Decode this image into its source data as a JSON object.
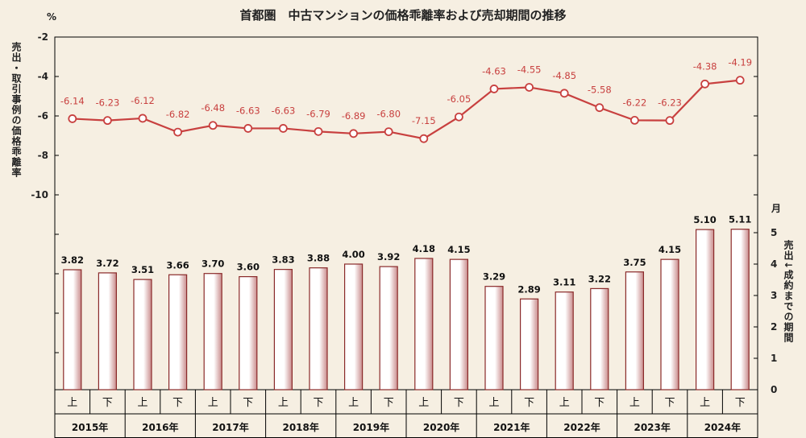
{
  "title": "首都圏　中古マンションの価格乖離率および売却期間の推移",
  "left_unit": "%",
  "right_unit": "月",
  "left_axis_label": "売出・取引事例の価格乖離率",
  "right_axis_label": "売出↓成約までの期間",
  "colors": {
    "line": "#c8403f",
    "bar_edge": "#8a2a2a",
    "bar_fill_light": "#ffffff",
    "bar_fill_dark": "#c98b8b",
    "background": "#f6efe2"
  },
  "chart_data": [
    {
      "type": "line",
      "name": "",
      "ylim": [
        -10,
        -2
      ],
      "yticks": [
        "-2",
        "-4",
        "-6",
        "-8",
        "-10"
      ],
      "values": [
        -6.14,
        -6.23,
        -6.12,
        -6.82,
        -6.48,
        -6.63,
        -6.63,
        -6.79,
        -6.89,
        -6.8,
        -7.15,
        -6.05,
        -4.63,
        -4.55,
        -4.85,
        -5.58,
        -6.22,
        -6.23,
        -4.38,
        -4.19
      ],
      "value_labels": [
        "-6.14",
        "-6.23",
        "-6.12",
        "-6.82",
        "-6.48",
        "-6.63",
        "-6.63",
        "-6.79",
        "-6.89",
        "-6.80",
        "-7.15",
        "-6.05",
        "-4.63",
        "-4.55",
        "-4.85",
        "-5.58",
        "-6.22",
        "-6.23",
        "-4.38",
        "-4.19"
      ]
    },
    {
      "type": "bar",
      "name": "",
      "ylim": [
        0,
        5
      ],
      "yticks": [
        "0",
        "1",
        "2",
        "3",
        "4",
        "5"
      ],
      "values": [
        3.82,
        3.72,
        3.51,
        3.66,
        3.7,
        3.6,
        3.83,
        3.88,
        4.0,
        3.92,
        4.18,
        4.15,
        3.29,
        2.89,
        3.11,
        3.22,
        3.75,
        4.15,
        5.1,
        5.11
      ],
      "value_labels": [
        "3.82",
        "3.72",
        "3.51",
        "3.66",
        "3.70",
        "3.60",
        "3.83",
        "3.88",
        "4.00",
        "3.92",
        "4.18",
        "4.15",
        "3.29",
        "2.89",
        "3.11",
        "3.22",
        "3.75",
        "4.15",
        "5.10",
        "5.11"
      ]
    }
  ],
  "halves": [
    "上",
    "下"
  ],
  "years": [
    "2015年",
    "2016年",
    "2017年",
    "2018年",
    "2019年",
    "2020年",
    "2021年",
    "2022年",
    "2023年",
    "2024年"
  ]
}
